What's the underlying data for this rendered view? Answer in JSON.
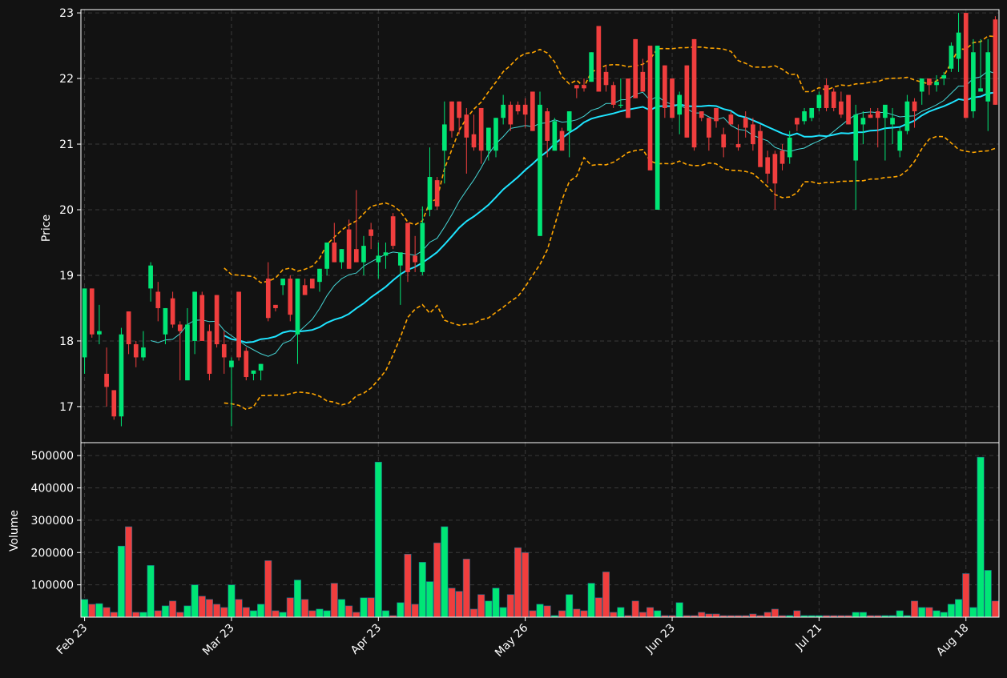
{
  "colors": {
    "background": "#121212",
    "up": "#00e676",
    "down": "#f03e3e",
    "ma_fast": "#46d6d6",
    "ma_slow": "#1ee4ff",
    "bollinger": "#ffa500",
    "grid": "#3a3a3a",
    "text": "#ffffff"
  },
  "chart_data": {
    "type": "candlestick",
    "grid": true,
    "price_panel": {
      "ylabel": "Price",
      "ylim": [
        16.45,
        23.05
      ],
      "yticks": [
        17,
        18,
        19,
        20,
        21,
        22,
        23
      ]
    },
    "volume_panel": {
      "ylabel": "Volume",
      "ylim": [
        0,
        540000
      ],
      "yticks": [
        100000,
        200000,
        300000,
        400000,
        500000
      ],
      "ytick_labels": [
        "100000",
        "200000",
        "300000",
        "400000",
        "500000"
      ]
    },
    "x_ticks": [
      {
        "index": 0,
        "label": "Feb 23"
      },
      {
        "index": 20,
        "label": "Mar 23"
      },
      {
        "index": 40,
        "label": "Apr 23"
      },
      {
        "index": 60,
        "label": "May 26"
      },
      {
        "index": 80,
        "label": "Jun 23"
      },
      {
        "index": 100,
        "label": "Jul 21"
      },
      {
        "index": 120,
        "label": "Aug 18"
      }
    ],
    "ohlcv": [
      [
        17.75,
        18.8,
        17.5,
        18.8,
        55000
      ],
      [
        18.8,
        18.8,
        18.05,
        18.1,
        40000
      ],
      [
        18.1,
        18.55,
        17.95,
        18.15,
        42000
      ],
      [
        17.5,
        17.9,
        17.0,
        17.3,
        30000
      ],
      [
        17.25,
        17.25,
        16.8,
        16.85,
        15000
      ],
      [
        16.85,
        18.2,
        16.7,
        18.1,
        220000
      ],
      [
        18.45,
        18.45,
        17.8,
        17.95,
        280000
      ],
      [
        17.95,
        18.0,
        17.6,
        17.75,
        15000
      ],
      [
        17.75,
        18.15,
        17.7,
        17.9,
        15000
      ],
      [
        18.8,
        19.2,
        18.6,
        19.15,
        160000
      ],
      [
        18.75,
        18.9,
        18.3,
        18.5,
        20000
      ],
      [
        18.1,
        18.5,
        17.95,
        18.5,
        35000
      ],
      [
        18.65,
        18.75,
        18.2,
        18.25,
        50000
      ],
      [
        18.25,
        18.3,
        17.4,
        18.15,
        15000
      ],
      [
        17.4,
        18.5,
        17.4,
        18.25,
        35000
      ],
      [
        18.0,
        18.75,
        17.8,
        18.75,
        100000
      ],
      [
        18.7,
        18.75,
        18.3,
        18.0,
        65000
      ],
      [
        18.15,
        18.25,
        17.4,
        17.5,
        55000
      ],
      [
        18.7,
        18.7,
        17.9,
        17.95,
        40000
      ],
      [
        17.95,
        18.15,
        17.5,
        17.75,
        30000
      ],
      [
        17.6,
        17.75,
        16.7,
        17.7,
        100000
      ],
      [
        18.75,
        18.75,
        17.7,
        17.75,
        55000
      ],
      [
        17.85,
        17.9,
        17.4,
        17.45,
        30000
      ],
      [
        17.5,
        17.55,
        17.4,
        17.55,
        20000
      ],
      [
        17.55,
        17.65,
        17.4,
        17.65,
        40000
      ],
      [
        18.95,
        19.2,
        18.3,
        18.35,
        175000
      ],
      [
        18.55,
        18.55,
        18.45,
        18.5,
        20000
      ],
      [
        18.85,
        18.95,
        18.7,
        18.95,
        15000
      ],
      [
        18.95,
        19.0,
        18.3,
        18.4,
        60000
      ],
      [
        18.1,
        18.95,
        17.65,
        18.95,
        115000
      ],
      [
        18.85,
        18.95,
        18.7,
        18.7,
        55000
      ],
      [
        18.95,
        18.95,
        18.8,
        18.8,
        20000
      ],
      [
        18.9,
        19.1,
        18.75,
        19.1,
        25000
      ],
      [
        19.1,
        19.5,
        19.0,
        19.5,
        20000
      ],
      [
        19.5,
        19.8,
        19.2,
        19.2,
        105000
      ],
      [
        19.2,
        19.4,
        19.1,
        19.4,
        55000
      ],
      [
        19.7,
        19.85,
        19.1,
        19.1,
        35000
      ],
      [
        19.4,
        20.3,
        19.2,
        19.2,
        15000
      ],
      [
        19.2,
        19.6,
        19.0,
        19.45,
        60000
      ],
      [
        19.7,
        19.8,
        19.4,
        19.6,
        60000
      ],
      [
        19.2,
        19.5,
        18.95,
        19.3,
        480000
      ],
      [
        19.3,
        19.5,
        19.1,
        19.35,
        20000
      ],
      [
        19.9,
        19.95,
        19.4,
        19.45,
        5000
      ],
      [
        19.15,
        19.3,
        18.55,
        19.35,
        45000
      ],
      [
        19.8,
        19.8,
        18.9,
        19.05,
        195000
      ],
      [
        19.3,
        19.6,
        19.05,
        19.2,
        40000
      ],
      [
        19.05,
        20.05,
        19.0,
        19.8,
        170000
      ],
      [
        20.0,
        20.95,
        19.9,
        20.5,
        110000
      ],
      [
        20.45,
        20.5,
        20.0,
        20.05,
        230000
      ],
      [
        20.9,
        21.65,
        20.4,
        21.3,
        280000
      ],
      [
        21.65,
        21.65,
        21.1,
        21.2,
        90000
      ],
      [
        21.65,
        21.65,
        21.15,
        21.4,
        80000
      ],
      [
        21.45,
        21.55,
        20.55,
        21.1,
        180000
      ],
      [
        21.15,
        21.45,
        20.9,
        20.95,
        25000
      ],
      [
        21.55,
        21.55,
        20.7,
        20.9,
        70000
      ],
      [
        20.9,
        21.25,
        20.75,
        21.25,
        50000
      ],
      [
        20.9,
        21.4,
        20.8,
        21.4,
        90000
      ],
      [
        21.4,
        21.75,
        21.3,
        21.6,
        30000
      ],
      [
        21.6,
        21.65,
        21.2,
        21.3,
        70000
      ],
      [
        21.6,
        21.65,
        21.45,
        21.5,
        215000
      ],
      [
        21.6,
        21.7,
        21.25,
        21.45,
        200000
      ],
      [
        21.8,
        21.8,
        21.2,
        21.2,
        20000
      ],
      [
        19.6,
        21.8,
        19.6,
        21.6,
        40000
      ],
      [
        21.5,
        21.55,
        20.8,
        21.05,
        35000
      ],
      [
        20.9,
        21.4,
        20.9,
        21.35,
        5000
      ],
      [
        21.2,
        21.25,
        20.9,
        20.9,
        20000
      ],
      [
        21.2,
        21.5,
        20.8,
        21.5,
        70000
      ],
      [
        21.9,
        21.9,
        21.7,
        21.85,
        25000
      ],
      [
        21.9,
        22.0,
        21.8,
        21.85,
        20000
      ],
      [
        21.95,
        22.4,
        21.95,
        22.4,
        105000
      ],
      [
        22.8,
        22.8,
        21.8,
        21.8,
        60000
      ],
      [
        22.1,
        22.2,
        21.8,
        21.9,
        140000
      ],
      [
        21.9,
        21.95,
        21.55,
        21.6,
        15000
      ],
      [
        21.6,
        22.0,
        21.55,
        21.6,
        30000
      ],
      [
        22.0,
        22.0,
        21.4,
        21.4,
        5000
      ],
      [
        22.6,
        22.6,
        21.7,
        21.7,
        50000
      ],
      [
        22.1,
        22.3,
        21.8,
        21.8,
        15000
      ],
      [
        22.5,
        22.5,
        20.6,
        20.6,
        30000
      ],
      [
        20.0,
        22.5,
        20.0,
        22.5,
        20000
      ],
      [
        22.2,
        22.2,
        21.4,
        21.55,
        5000
      ],
      [
        22.0,
        22.0,
        21.4,
        21.4,
        5000
      ],
      [
        21.45,
        21.8,
        21.15,
        21.75,
        45000
      ],
      [
        22.2,
        22.2,
        21.1,
        21.1,
        5000
      ],
      [
        22.6,
        22.6,
        20.9,
        20.95,
        5000
      ],
      [
        21.5,
        21.5,
        21.35,
        21.4,
        15000
      ],
      [
        21.4,
        21.4,
        20.9,
        21.1,
        10000
      ],
      [
        21.55,
        21.55,
        21.25,
        21.35,
        10000
      ],
      [
        21.15,
        21.25,
        20.8,
        20.95,
        5000
      ],
      [
        21.45,
        21.5,
        21.3,
        21.3,
        5000
      ],
      [
        21.0,
        21.3,
        20.9,
        20.95,
        5000
      ],
      [
        21.4,
        21.5,
        21.1,
        21.25,
        5000
      ],
      [
        21.3,
        21.4,
        20.9,
        21.0,
        10000
      ],
      [
        21.2,
        21.3,
        20.7,
        20.65,
        5000
      ],
      [
        20.8,
        20.9,
        20.4,
        20.55,
        15000
      ],
      [
        20.85,
        20.9,
        20.0,
        20.4,
        25000
      ],
      [
        20.9,
        21.0,
        20.6,
        20.7,
        5000
      ],
      [
        20.8,
        21.2,
        20.7,
        21.1,
        5000
      ],
      [
        21.4,
        21.4,
        21.2,
        21.3,
        20000
      ],
      [
        21.35,
        21.55,
        21.3,
        21.5,
        5000
      ],
      [
        21.4,
        21.55,
        21.35,
        21.55,
        5000
      ],
      [
        21.55,
        21.8,
        21.5,
        21.75,
        5000
      ],
      [
        21.9,
        22.0,
        21.5,
        21.55,
        5000
      ],
      [
        21.8,
        21.85,
        21.5,
        21.55,
        5000
      ],
      [
        21.65,
        21.8,
        21.4,
        21.45,
        5000
      ],
      [
        21.75,
        21.75,
        21.3,
        21.3,
        5000
      ],
      [
        20.75,
        21.6,
        20.0,
        21.45,
        15000
      ],
      [
        21.3,
        21.5,
        21.0,
        21.4,
        15000
      ],
      [
        21.45,
        21.55,
        21.4,
        21.4,
        5000
      ],
      [
        21.5,
        21.55,
        20.95,
        21.4,
        5000
      ],
      [
        21.4,
        21.5,
        20.75,
        21.6,
        5000
      ],
      [
        21.3,
        21.55,
        21.0,
        21.4,
        5000
      ],
      [
        20.9,
        21.25,
        20.8,
        21.2,
        20000
      ],
      [
        21.2,
        21.75,
        21.15,
        21.65,
        5000
      ],
      [
        21.65,
        21.7,
        21.25,
        21.5,
        50000
      ],
      [
        21.8,
        22.0,
        21.6,
        22.0,
        30000
      ],
      [
        22.0,
        22.0,
        21.75,
        21.9,
        30000
      ],
      [
        21.9,
        22.05,
        21.8,
        21.95,
        20000
      ],
      [
        22.0,
        22.1,
        21.9,
        22.05,
        15000
      ],
      [
        22.15,
        22.55,
        22.1,
        22.5,
        40000
      ],
      [
        22.3,
        23.0,
        22.1,
        22.7,
        55000
      ],
      [
        23.0,
        23.0,
        21.4,
        21.4,
        135000
      ],
      [
        21.5,
        22.6,
        21.4,
        22.4,
        30000
      ],
      [
        21.8,
        22.6,
        21.8,
        21.85,
        495000
      ],
      [
        21.65,
        22.6,
        21.2,
        22.4,
        145000
      ],
      [
        22.9,
        22.95,
        21.6,
        21.6,
        50000
      ]
    ],
    "overlays": [
      {
        "style": "moving-average",
        "window": 10,
        "color": "#46d6d6"
      },
      {
        "style": "moving-average",
        "window": 20,
        "color": "#1ee4ff"
      },
      {
        "style": "bollinger",
        "window": 20,
        "color": "#ffa500"
      }
    ]
  }
}
